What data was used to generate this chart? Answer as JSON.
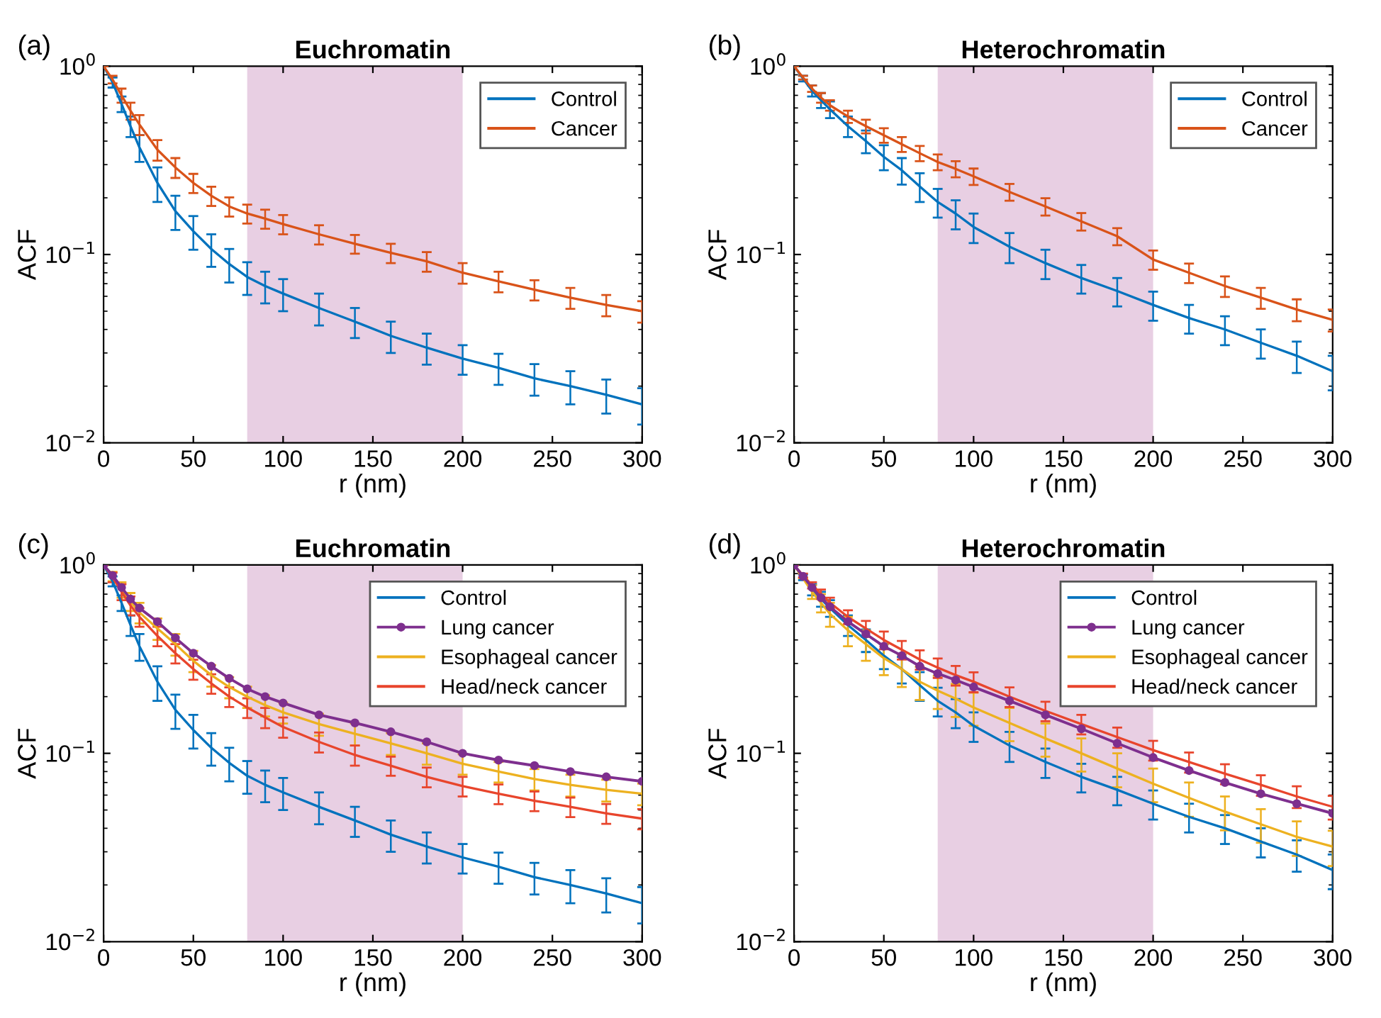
{
  "chart_data": [
    {
      "type": "line",
      "title": "Euchromatin",
      "xlabel": "r (nm)",
      "ylabel": "ACF",
      "annotations": [
        "(a)"
      ],
      "log": "y",
      "legend": "top right",
      "grid": false,
      "x": [
        0,
        5,
        10,
        15,
        20,
        30,
        40,
        50,
        60,
        70,
        80,
        90,
        100,
        120,
        140,
        160,
        180,
        200,
        220,
        240,
        260,
        280,
        300
      ],
      "xlim": [
        0,
        300
      ],
      "xticks": [
        0,
        50,
        100,
        150,
        200,
        250,
        300
      ],
      "ylim": [
        0.01,
        1
      ],
      "yticks": [
        {
          "value": 0.01,
          "label": "10$^{−2}$"
        },
        {
          "value": 0.1,
          "label": "10$^{−1}$"
        },
        {
          "value": 1,
          "label": "10$^{0}$"
        }
      ],
      "bands": [
        {
          "axis": "x",
          "from": 80,
          "to": 200,
          "color": "#e8cfe3"
        }
      ],
      "series": [
        {
          "name": "Control",
          "color": "#0072bd",
          "values": [
            1,
            0.82,
            0.63,
            0.48,
            0.37,
            0.24,
            0.17,
            0.133,
            0.107,
            0.089,
            0.076,
            0.068,
            0.062,
            0.052,
            0.044,
            0.037,
            0.032,
            0.028,
            0.025,
            0.022,
            0.02,
            0.018,
            0.016
          ],
          "errors": [
            0,
            0.05,
            0.06,
            0.06,
            0.06,
            0.05,
            0.035,
            0.027,
            0.021,
            0.018,
            0.015,
            0.013,
            0.012,
            0.01,
            0.008,
            0.007,
            0.006,
            0.005,
            0.0047,
            0.0042,
            0.004,
            0.0037,
            0.0035
          ]
        },
        {
          "name": "Cancer",
          "color": "#d95319",
          "values": [
            1,
            0.85,
            0.7,
            0.58,
            0.49,
            0.36,
            0.29,
            0.24,
            0.205,
            0.18,
            0.165,
            0.155,
            0.145,
            0.128,
            0.114,
            0.102,
            0.092,
            0.08,
            0.072,
            0.065,
            0.059,
            0.054,
            0.05
          ],
          "errors": [
            0,
            0.04,
            0.06,
            0.06,
            0.06,
            0.045,
            0.035,
            0.028,
            0.024,
            0.021,
            0.019,
            0.018,
            0.017,
            0.015,
            0.013,
            0.012,
            0.011,
            0.01,
            0.009,
            0.008,
            0.0075,
            0.007,
            0.0065
          ]
        }
      ]
    },
    {
      "type": "line",
      "title": "Heterochromatin",
      "xlabel": "r (nm)",
      "ylabel": "ACF",
      "annotations": [
        "(b)"
      ],
      "log": "y",
      "legend": "top right",
      "grid": false,
      "x": [
        0,
        5,
        10,
        15,
        20,
        30,
        40,
        50,
        60,
        70,
        80,
        90,
        100,
        120,
        140,
        160,
        180,
        200,
        220,
        240,
        260,
        280,
        300
      ],
      "xlim": [
        0,
        300
      ],
      "xticks": [
        0,
        50,
        100,
        150,
        200,
        250,
        300
      ],
      "ylim": [
        0.01,
        1
      ],
      "yticks": [
        {
          "value": 0.01,
          "label": "10$^{−2}$"
        },
        {
          "value": 0.1,
          "label": "10$^{−1}$"
        },
        {
          "value": 1,
          "label": "10$^{0}$"
        }
      ],
      "bands": [
        {
          "axis": "x",
          "from": 80,
          "to": 200,
          "color": "#e8cfe3"
        }
      ],
      "series": [
        {
          "name": "Control",
          "color": "#0072bd",
          "values": [
            1,
            0.86,
            0.74,
            0.66,
            0.59,
            0.48,
            0.4,
            0.33,
            0.28,
            0.23,
            0.19,
            0.165,
            0.14,
            0.11,
            0.09,
            0.075,
            0.064,
            0.054,
            0.046,
            0.04,
            0.034,
            0.029,
            0.024
          ],
          "errors": [
            0,
            0.03,
            0.05,
            0.06,
            0.06,
            0.06,
            0.055,
            0.05,
            0.045,
            0.04,
            0.033,
            0.029,
            0.025,
            0.02,
            0.016,
            0.013,
            0.011,
            0.0095,
            0.008,
            0.007,
            0.006,
            0.0055,
            0.005
          ]
        },
        {
          "name": "Cancer",
          "color": "#d95319",
          "values": [
            1,
            0.87,
            0.76,
            0.68,
            0.62,
            0.54,
            0.48,
            0.43,
            0.385,
            0.345,
            0.31,
            0.285,
            0.26,
            0.215,
            0.18,
            0.15,
            0.125,
            0.094,
            0.08,
            0.068,
            0.059,
            0.051,
            0.045
          ],
          "errors": [
            0,
            0.02,
            0.03,
            0.04,
            0.04,
            0.04,
            0.04,
            0.038,
            0.035,
            0.032,
            0.03,
            0.028,
            0.026,
            0.022,
            0.019,
            0.016,
            0.013,
            0.011,
            0.0095,
            0.0085,
            0.0075,
            0.0068,
            0.006
          ]
        }
      ]
    },
    {
      "type": "line",
      "title": "Euchromatin",
      "xlabel": "r (nm)",
      "ylabel": "ACF",
      "annotations": [
        "(c)"
      ],
      "log": "y",
      "legend": "top right",
      "grid": false,
      "x": [
        0,
        5,
        10,
        15,
        20,
        30,
        40,
        50,
        60,
        70,
        80,
        90,
        100,
        120,
        140,
        160,
        180,
        200,
        220,
        240,
        260,
        280,
        300
      ],
      "xlim": [
        0,
        300
      ],
      "xticks": [
        0,
        50,
        100,
        150,
        200,
        250,
        300
      ],
      "ylim": [
        0.01,
        1
      ],
      "yticks": [
        {
          "value": 0.01,
          "label": "10$^{−2}$"
        },
        {
          "value": 0.1,
          "label": "10$^{−1}$"
        },
        {
          "value": 1,
          "label": "10$^{0}$"
        }
      ],
      "bands": [
        {
          "axis": "x",
          "from": 80,
          "to": 200,
          "color": "#e8cfe3"
        }
      ],
      "series": [
        {
          "name": "Control",
          "color": "#0072bd",
          "values": [
            1,
            0.82,
            0.63,
            0.48,
            0.37,
            0.24,
            0.17,
            0.133,
            0.107,
            0.089,
            0.076,
            0.068,
            0.062,
            0.052,
            0.044,
            0.037,
            0.032,
            0.028,
            0.025,
            0.022,
            0.02,
            0.018,
            0.016
          ],
          "errors": [
            0,
            0.05,
            0.06,
            0.06,
            0.06,
            0.05,
            0.035,
            0.027,
            0.021,
            0.018,
            0.015,
            0.013,
            0.012,
            0.01,
            0.008,
            0.007,
            0.006,
            0.005,
            0.0047,
            0.0042,
            0.004,
            0.0037,
            0.0035
          ]
        },
        {
          "name": "Lung cancer",
          "color": "#7e2f8e",
          "marker": "circle",
          "values": [
            1,
            0.88,
            0.76,
            0.66,
            0.59,
            0.5,
            0.41,
            0.34,
            0.29,
            0.25,
            0.22,
            0.2,
            0.185,
            0.16,
            0.145,
            0.13,
            0.115,
            0.1,
            0.092,
            0.086,
            0.08,
            0.075,
            0.071
          ]
        },
        {
          "name": "Esophageal cancer",
          "color": "#edb120",
          "values": [
            1,
            0.87,
            0.74,
            0.64,
            0.56,
            0.46,
            0.38,
            0.31,
            0.26,
            0.225,
            0.2,
            0.18,
            0.165,
            0.143,
            0.127,
            0.113,
            0.1,
            0.088,
            0.08,
            0.073,
            0.068,
            0.064,
            0.061
          ],
          "errors": [
            0,
            0.05,
            0.07,
            0.07,
            0.07,
            0.06,
            0.05,
            0.04,
            0.034,
            0.029,
            0.026,
            0.023,
            0.021,
            0.019,
            0.017,
            0.015,
            0.013,
            0.011,
            0.01,
            0.0095,
            0.009,
            0.0085,
            0.008
          ]
        },
        {
          "name": "Head/neck cancer",
          "color": "#e8452c",
          "values": [
            1,
            0.86,
            0.72,
            0.61,
            0.53,
            0.42,
            0.34,
            0.28,
            0.235,
            0.2,
            0.175,
            0.155,
            0.138,
            0.115,
            0.098,
            0.086,
            0.075,
            0.067,
            0.061,
            0.056,
            0.052,
            0.048,
            0.045
          ],
          "errors": [
            0,
            0.05,
            0.07,
            0.07,
            0.06,
            0.05,
            0.04,
            0.034,
            0.028,
            0.024,
            0.021,
            0.019,
            0.017,
            0.014,
            0.012,
            0.01,
            0.009,
            0.008,
            0.0073,
            0.0067,
            0.0062,
            0.0058,
            0.0055
          ]
        }
      ]
    },
    {
      "type": "line",
      "title": "Heterochromatin",
      "xlabel": "r (nm)",
      "ylabel": "ACF",
      "annotations": [
        "(d)"
      ],
      "log": "y",
      "legend": "top right",
      "grid": false,
      "x": [
        0,
        5,
        10,
        15,
        20,
        30,
        40,
        50,
        60,
        70,
        80,
        90,
        100,
        120,
        140,
        160,
        180,
        200,
        220,
        240,
        260,
        280,
        300
      ],
      "xlim": [
        0,
        300
      ],
      "xticks": [
        0,
        50,
        100,
        150,
        200,
        250,
        300
      ],
      "ylim": [
        0.01,
        1
      ],
      "yticks": [
        {
          "value": 0.01,
          "label": "10$^{−2}$"
        },
        {
          "value": 0.1,
          "label": "10$^{−1}$"
        },
        {
          "value": 1,
          "label": "10$^{0}$"
        }
      ],
      "bands": [
        {
          "axis": "x",
          "from": 80,
          "to": 200,
          "color": "#e8cfe3"
        }
      ],
      "series": [
        {
          "name": "Control",
          "color": "#0072bd",
          "values": [
            1,
            0.86,
            0.74,
            0.66,
            0.59,
            0.48,
            0.4,
            0.33,
            0.28,
            0.23,
            0.19,
            0.165,
            0.14,
            0.11,
            0.09,
            0.075,
            0.064,
            0.054,
            0.046,
            0.04,
            0.034,
            0.029,
            0.024
          ],
          "errors": [
            0,
            0.03,
            0.05,
            0.06,
            0.06,
            0.06,
            0.055,
            0.05,
            0.045,
            0.04,
            0.033,
            0.029,
            0.025,
            0.02,
            0.016,
            0.013,
            0.011,
            0.0095,
            0.008,
            0.007,
            0.006,
            0.0055,
            0.005
          ]
        },
        {
          "name": "Lung cancer",
          "color": "#7e2f8e",
          "marker": "circle",
          "values": [
            1,
            0.87,
            0.76,
            0.67,
            0.6,
            0.5,
            0.43,
            0.37,
            0.33,
            0.29,
            0.265,
            0.245,
            0.225,
            0.19,
            0.16,
            0.135,
            0.113,
            0.095,
            0.081,
            0.07,
            0.061,
            0.054,
            0.048
          ]
        },
        {
          "name": "Esophageal cancer",
          "color": "#edb120",
          "values": [
            1,
            0.85,
            0.72,
            0.63,
            0.55,
            0.45,
            0.38,
            0.32,
            0.28,
            0.24,
            0.215,
            0.195,
            0.175,
            0.145,
            0.12,
            0.1,
            0.083,
            0.069,
            0.058,
            0.049,
            0.042,
            0.036,
            0.032
          ],
          "errors": [
            0,
            null,
            0.06,
            0.07,
            0.08,
            0.08,
            0.07,
            0.06,
            0.055,
            0.048,
            0.043,
            0.039,
            0.035,
            0.029,
            0.024,
            0.02,
            0.017,
            0.014,
            0.012,
            0.01,
            0.0085,
            0.0075,
            0.0068
          ]
        },
        {
          "name": "Head/neck cancer",
          "color": "#e8452c",
          "values": [
            1,
            0.88,
            0.78,
            0.7,
            0.63,
            0.53,
            0.46,
            0.4,
            0.355,
            0.315,
            0.285,
            0.26,
            0.24,
            0.2,
            0.168,
            0.143,
            0.122,
            0.104,
            0.09,
            0.078,
            0.068,
            0.059,
            0.052
          ],
          "errors": [
            0,
            0.02,
            0.03,
            0.04,
            0.04,
            0.045,
            0.045,
            0.043,
            0.04,
            0.037,
            0.034,
            0.031,
            0.029,
            0.024,
            0.02,
            0.017,
            0.015,
            0.0125,
            0.011,
            0.0095,
            0.0085,
            0.0078,
            0.0075
          ]
        }
      ]
    }
  ]
}
